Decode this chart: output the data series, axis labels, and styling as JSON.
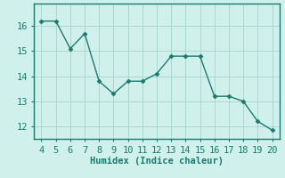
{
  "x": [
    4,
    5,
    6,
    7,
    8,
    9,
    10,
    11,
    12,
    13,
    14,
    15,
    16,
    17,
    18,
    19,
    20
  ],
  "y": [
    16.2,
    16.2,
    15.1,
    15.7,
    13.8,
    13.3,
    13.8,
    13.8,
    14.1,
    14.8,
    14.8,
    14.8,
    13.2,
    13.2,
    13.0,
    12.2,
    11.85
  ],
  "line_color": "#1a7a6e",
  "marker": "D",
  "marker_size": 2.5,
  "xlabel": "Humidex (Indice chaleur)",
  "xlim_min": 3.5,
  "xlim_max": 20.5,
  "ylim_min": 11.5,
  "ylim_max": 16.9,
  "yticks": [
    12,
    13,
    14,
    15,
    16
  ],
  "xticks": [
    4,
    5,
    6,
    7,
    8,
    9,
    10,
    11,
    12,
    13,
    14,
    15,
    16,
    17,
    18,
    19,
    20
  ],
  "background_color": "#cff0eb",
  "grid_color": "#aad8d0",
  "axis_color": "#1a7a6e",
  "tick_color": "#1a7a6e",
  "label_color": "#1a7a6e",
  "font_size": 7.5
}
